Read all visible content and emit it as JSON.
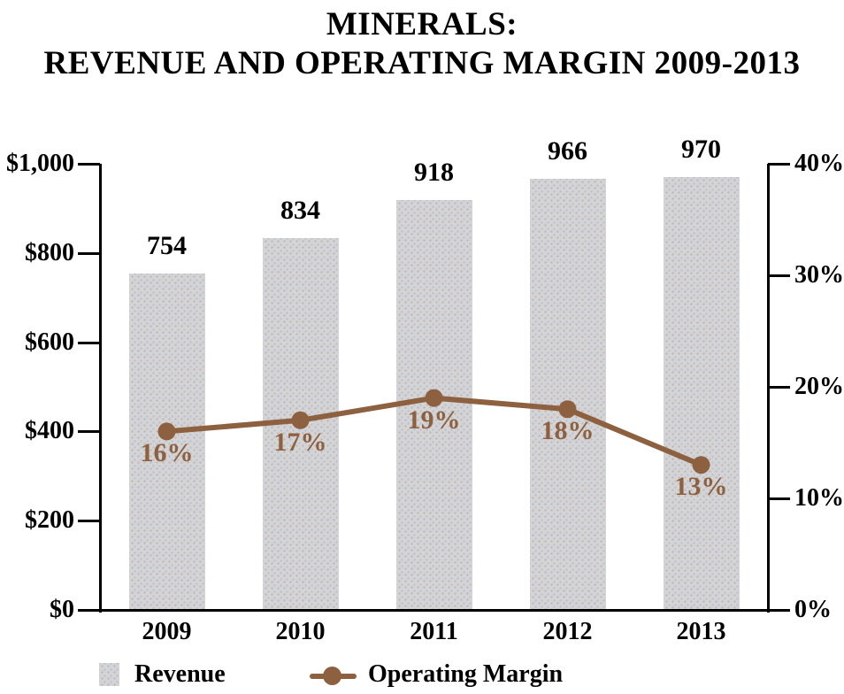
{
  "title": {
    "line1": "MINERALS:",
    "line2": "REVENUE AND OPERATING MARGIN 2009-2013"
  },
  "colors": {
    "bar": "#d3d4d6",
    "line": "#8d6140",
    "percent_label": "#8d6140",
    "axis": "#000000",
    "text": "#000000"
  },
  "chart_data": {
    "type": "bar",
    "subtype": "bar+line combo",
    "title": "MINERALS: REVENUE AND OPERATING MARGIN 2009-2013",
    "categories": [
      "2009",
      "2010",
      "2011",
      "2012",
      "2013"
    ],
    "series": [
      {
        "name": "Revenue",
        "type": "bar",
        "axis": "left",
        "values": [
          754,
          834,
          918,
          966,
          970
        ],
        "labels": [
          "754",
          "834",
          "918",
          "966",
          "970"
        ]
      },
      {
        "name": "Operating Margin",
        "type": "line",
        "axis": "right",
        "values": [
          16,
          17,
          19,
          18,
          13
        ],
        "labels": [
          "16%",
          "17%",
          "19%",
          "18%",
          "13%"
        ]
      }
    ],
    "left_axis": {
      "min": 0,
      "max": 1000,
      "ticks": [
        {
          "label": "$1,000",
          "value": 1000
        },
        {
          "label": "$800",
          "value": 800
        },
        {
          "label": "$600",
          "value": 600
        },
        {
          "label": "$400",
          "value": 400
        },
        {
          "label": "$200",
          "value": 200
        },
        {
          "label": "$0",
          "value": 0
        }
      ]
    },
    "right_axis": {
      "min": 0,
      "max": 40,
      "ticks": [
        {
          "label": "40%",
          "value": 40
        },
        {
          "label": "30%",
          "value": 30
        },
        {
          "label": "20%",
          "value": 20
        },
        {
          "label": "10%",
          "value": 10
        },
        {
          "label": "0%",
          "value": 0
        }
      ]
    },
    "grid": "off",
    "legend_position": "bottom-left",
    "legend": [
      {
        "label": "Revenue",
        "swatch": "bar"
      },
      {
        "label": "Operating Margin",
        "swatch": "line"
      }
    ]
  }
}
